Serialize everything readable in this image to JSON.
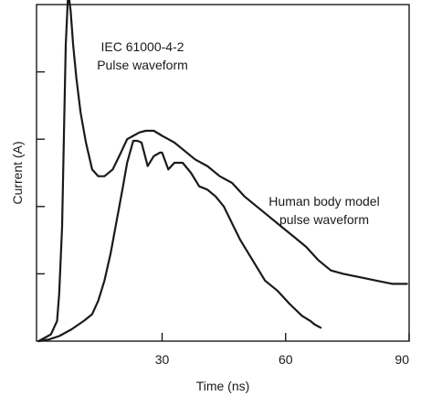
{
  "chart_data": {
    "type": "line",
    "title": "",
    "xlabel": "Time (ns)",
    "ylabel": "Current (A)",
    "xlim": [
      -0.5,
      90
    ],
    "ylim": [
      0,
      100
    ],
    "x_ticks": [
      {
        "value": 30,
        "label": "30"
      },
      {
        "value": 60,
        "label": "60"
      },
      {
        "value": 90,
        "label": "90"
      }
    ],
    "y_ticks": [
      20,
      40,
      60,
      80
    ],
    "grid": false,
    "legend": "none",
    "series": [
      {
        "x": [
          0,
          3,
          4.5,
          5,
          5.7,
          6.2,
          6.6,
          7.2,
          7.8,
          8.4,
          9.2,
          10.2,
          11.5,
          13,
          14.5,
          16,
          18,
          20,
          21.5,
          23,
          24.5,
          26,
          28,
          30,
          31.5,
          33,
          35,
          38,
          41,
          44,
          47,
          50,
          53,
          56,
          59,
          62,
          65,
          68,
          71,
          74,
          78,
          82,
          86,
          89.5
        ],
        "y": [
          0,
          2,
          6,
          14,
          34,
          64,
          88,
          104,
          98,
          88,
          78,
          68,
          59,
          51,
          49,
          49,
          51,
          56,
          60,
          61,
          62,
          62.5,
          62.5,
          61,
          60,
          59,
          57,
          54,
          52,
          49,
          47,
          43,
          40,
          37,
          34,
          31,
          28,
          24,
          21,
          20,
          19,
          18,
          17,
          17
        ]
      },
      {
        "x": [
          0,
          2.5,
          5,
          8,
          11,
          13,
          14.5,
          16,
          17.5,
          19,
          20.5,
          21.5,
          23,
          24,
          25,
          26.5,
          28,
          29.5,
          30,
          31.5,
          33,
          35,
          37,
          39,
          41,
          43,
          45,
          47,
          49,
          52,
          55,
          58,
          61,
          64,
          66,
          67,
          68.5
        ],
        "y": [
          0,
          0.5,
          1.5,
          3.5,
          6,
          8,
          12,
          18,
          26,
          36,
          46,
          53,
          59.5,
          59.5,
          59,
          52,
          55,
          56,
          56,
          51,
          53,
          53,
          50,
          46,
          45,
          43,
          40,
          35,
          30,
          24,
          18,
          15,
          11,
          7.5,
          6,
          5,
          4
        ]
      }
    ],
    "annotations": [
      {
        "lines": [
          "IEC 61000-4-2",
          "Pulse waveform"
        ]
      },
      {
        "lines": [
          "Human body model",
          "pulse waveform"
        ]
      }
    ]
  }
}
